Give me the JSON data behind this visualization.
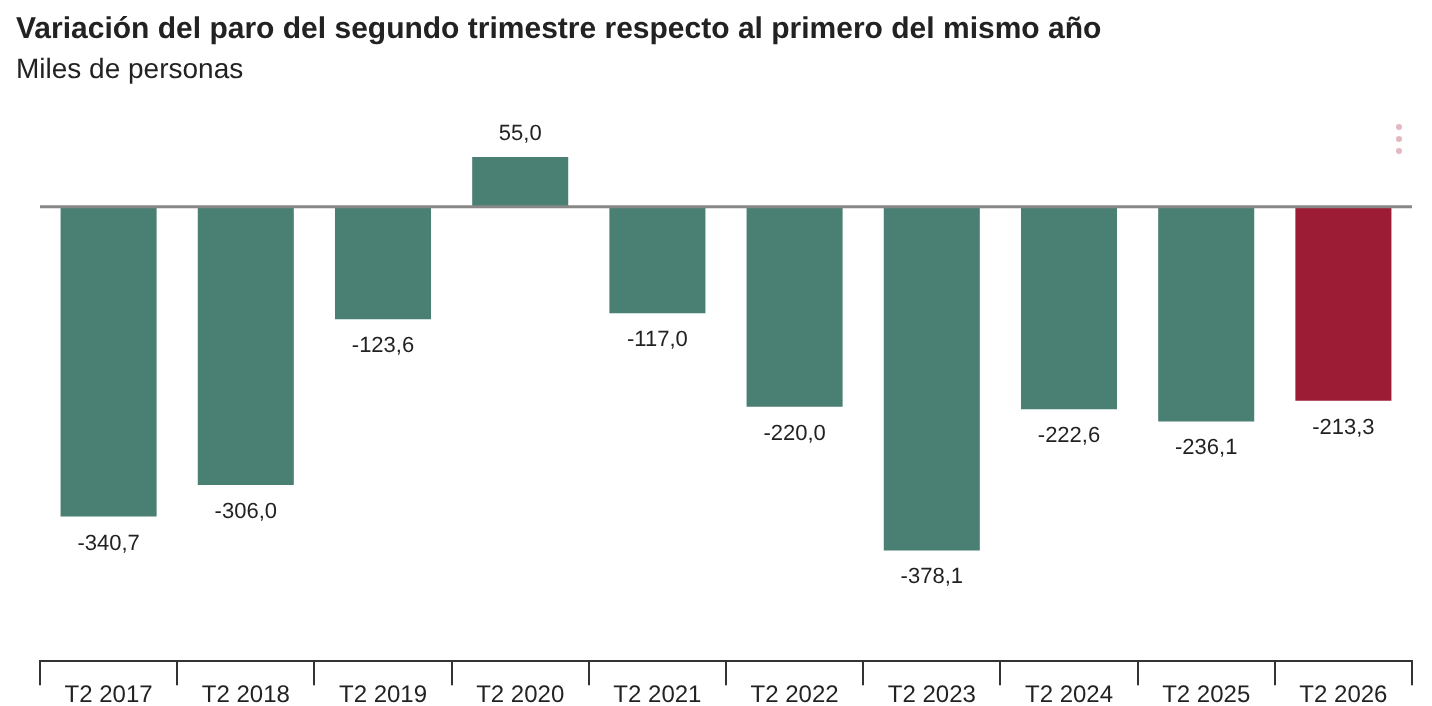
{
  "chart_data": {
    "type": "bar",
    "title": "Variación del paro del segundo trimestre respecto al primero del mismo año",
    "subtitle": "Miles de personas",
    "categories": [
      "T2 2017",
      "T2 2018",
      "T2 2019",
      "T2 2020",
      "T2 2021",
      "T2 2022",
      "T2 2023",
      "T2 2024",
      "T2 2025",
      "T2 2026"
    ],
    "values": [
      -340.7,
      -306.0,
      -123.6,
      55.0,
      -117.0,
      -220.0,
      -378.1,
      -222.6,
      -236.1,
      -213.3
    ],
    "colors": [
      "#4a7f74",
      "#4a7f74",
      "#4a7f74",
      "#4a7f74",
      "#4a7f74",
      "#4a7f74",
      "#4a7f74",
      "#4a7f74",
      "#4a7f74",
      "#9c1c36"
    ],
    "value_labels": [
      "-340,7",
      "-306,0",
      "-123,6",
      "55,0",
      "-117,0",
      "-220,0",
      "-378,1",
      "-222,6",
      "-236,1",
      "-213,3"
    ]
  }
}
